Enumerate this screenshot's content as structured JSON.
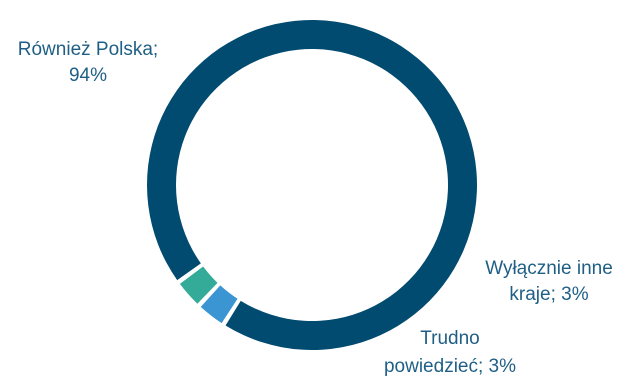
{
  "chart_data": {
    "type": "pie",
    "variant": "donut",
    "slices": [
      {
        "name": "Również Polska",
        "value": 94,
        "color": "#004b6f",
        "label_lines": [
          "Również Polska;",
          "94%"
        ]
      },
      {
        "name": "Wyłącznie inne kraje",
        "value": 3,
        "color": "#3b95d2",
        "label_lines": [
          "Wyłącznie inne",
          "kraje; 3%"
        ]
      },
      {
        "name": "Trudno powiedzieć",
        "value": 3,
        "color": "#34ab99",
        "label_lines": [
          "Trudno",
          "powiedzieć; 3%"
        ]
      }
    ],
    "legend": "none"
  }
}
